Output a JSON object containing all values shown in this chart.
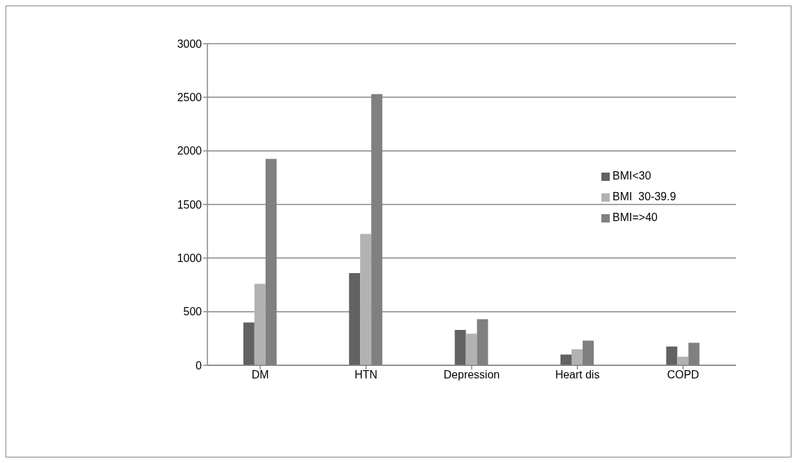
{
  "chart_data": {
    "type": "bar",
    "categories": [
      "DM",
      "HTN",
      "Depression",
      "Heart dis",
      "COPD"
    ],
    "series": [
      {
        "name": "BMI<30",
        "color": "#626262",
        "values": [
          400,
          860,
          330,
          100,
          175
        ]
      },
      {
        "name": "BMI  30-39.9",
        "color": "#b2b2b2",
        "values": [
          760,
          1225,
          295,
          150,
          80
        ]
      },
      {
        "name": "BMI=>40",
        "color": "#808080",
        "values": [
          1925,
          2530,
          430,
          230,
          210
        ]
      }
    ],
    "ylim": [
      0,
      3000
    ],
    "yticks": [
      0,
      500,
      1000,
      1500,
      2000,
      2500,
      3000
    ],
    "grid": "y",
    "legend": "right"
  }
}
